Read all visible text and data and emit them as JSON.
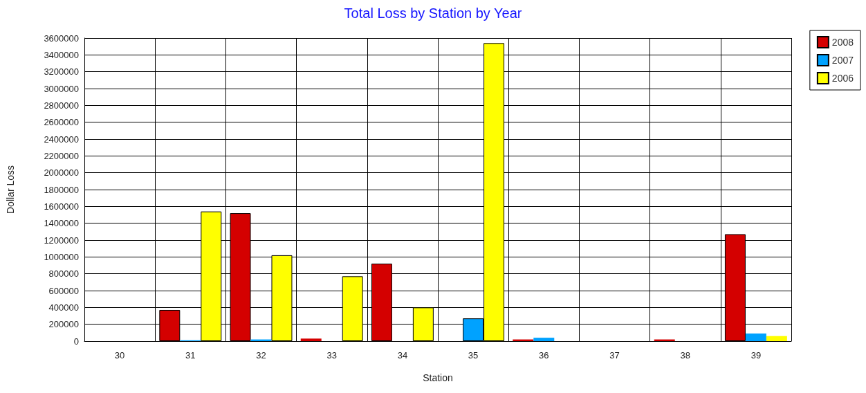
{
  "chart_data": {
    "type": "bar",
    "title": "Total Loss by Station by Year",
    "xlabel": "Station",
    "ylabel": "Dollar Loss",
    "categories": [
      "30",
      "31",
      "32",
      "33",
      "34",
      "35",
      "36",
      "37",
      "38",
      "39"
    ],
    "series": [
      {
        "name": "2008",
        "color": "#d40000",
        "values": [
          0,
          370000,
          1520000,
          30000,
          920000,
          0,
          20000,
          0,
          20000,
          1270000
        ]
      },
      {
        "name": "2007",
        "color": "#00a2ff",
        "values": [
          0,
          10000,
          20000,
          0,
          0,
          270000,
          40000,
          0,
          0,
          90000
        ]
      },
      {
        "name": "2006",
        "color": "#ffff00",
        "values": [
          0,
          1540000,
          1020000,
          770000,
          400000,
          3540000,
          0,
          0,
          0,
          60000
        ]
      }
    ],
    "ylim": [
      0,
      3600000
    ],
    "yticks": [
      0,
      200000,
      400000,
      600000,
      800000,
      1000000,
      1200000,
      1400000,
      1600000,
      1800000,
      2000000,
      2200000,
      2400000,
      2600000,
      2800000,
      3000000,
      3200000,
      3400000,
      3600000
    ],
    "grid": true,
    "legend": "top right"
  }
}
